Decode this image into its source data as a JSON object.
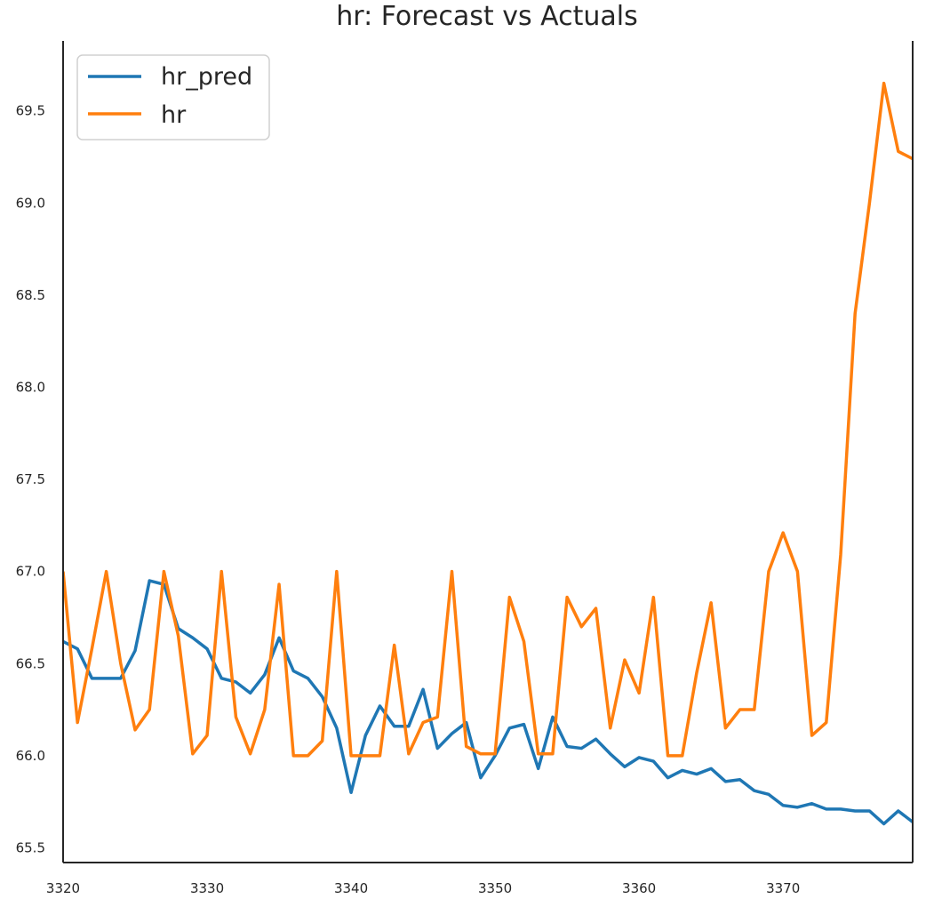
{
  "chart_data": {
    "type": "line",
    "title": "hr: Forecast vs Actuals",
    "xlabel": "",
    "ylabel": "",
    "xlim": [
      3320,
      3379
    ],
    "ylim": [
      65.42,
      69.88
    ],
    "xticks": [
      3320,
      3330,
      3340,
      3350,
      3360,
      3370
    ],
    "yticks": [
      65.5,
      66.0,
      66.5,
      67.0,
      67.5,
      68.0,
      68.5,
      69.0,
      69.5
    ],
    "ytick_labels": [
      "65.5",
      "66.0",
      "66.5",
      "67.0",
      "67.5",
      "68.0",
      "68.5",
      "69.0",
      "69.5"
    ],
    "grid": false,
    "legend_position": "upper-left",
    "x_start": 3320,
    "x_step": 1,
    "series": [
      {
        "name": "hr_pred",
        "color": "#1f77b4",
        "values": [
          66.62,
          66.58,
          66.42,
          66.42,
          66.42,
          66.57,
          66.95,
          66.93,
          66.69,
          66.64,
          66.58,
          66.42,
          66.4,
          66.34,
          66.44,
          66.64,
          66.46,
          66.42,
          66.32,
          66.15,
          65.8,
          66.11,
          66.27,
          66.16,
          66.16,
          66.36,
          66.04,
          66.12,
          66.18,
          65.88,
          66.0,
          66.15,
          66.17,
          65.93,
          66.21,
          66.05,
          66.04,
          66.09,
          66.01,
          65.94,
          65.99,
          65.97,
          65.88,
          65.92,
          65.9,
          65.93,
          65.86,
          65.87,
          65.81,
          65.79,
          65.73,
          65.72,
          65.74,
          65.71,
          65.71,
          65.7,
          65.7,
          65.63,
          65.7,
          65.64
        ]
      },
      {
        "name": "hr",
        "color": "#ff7f0e",
        "values": [
          67.0,
          66.18,
          66.58,
          67.0,
          66.5,
          66.14,
          66.25,
          67.0,
          66.65,
          66.01,
          66.11,
          67.0,
          66.21,
          66.01,
          66.25,
          66.93,
          66.0,
          66.0,
          66.08,
          67.0,
          66.0,
          66.0,
          66.0,
          66.6,
          66.01,
          66.18,
          66.21,
          67.0,
          66.05,
          66.01,
          66.01,
          66.86,
          66.62,
          66.01,
          66.01,
          66.86,
          66.7,
          66.8,
          66.15,
          66.52,
          66.34,
          66.86,
          66.0,
          66.0,
          66.45,
          66.83,
          66.15,
          66.25,
          66.25,
          67.0,
          67.21,
          67.0,
          66.11,
          66.18,
          67.09,
          68.4,
          69.0,
          69.65,
          69.28,
          69.24
        ]
      }
    ]
  }
}
